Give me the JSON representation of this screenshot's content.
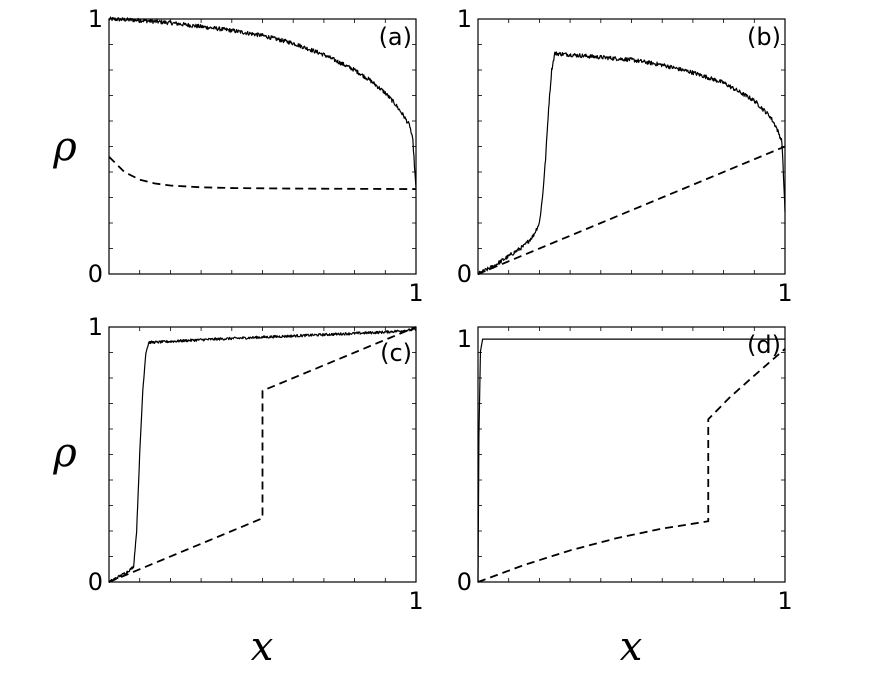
{
  "figure": {
    "ylabel": "ρ",
    "xlabel": "x"
  },
  "chart_data": [
    {
      "type": "line",
      "panel_label": "(a)",
      "xlim": [
        0,
        1
      ],
      "ylim": [
        0,
        1
      ],
      "xticklabels": [
        "",
        "1"
      ],
      "yticklabels": [
        "0",
        "1"
      ],
      "series": [
        {
          "style": "solid",
          "x": [
            0,
            0.1,
            0.2,
            0.3,
            0.4,
            0.5,
            0.6,
            0.7,
            0.75,
            0.8,
            0.85,
            0.9,
            0.93,
            0.96,
            0.98,
            0.99,
            1.0
          ],
          "y": [
            1.0,
            0.995,
            0.985,
            0.97,
            0.955,
            0.935,
            0.905,
            0.86,
            0.83,
            0.8,
            0.76,
            0.71,
            0.67,
            0.62,
            0.58,
            0.52,
            0.33
          ]
        },
        {
          "style": "dashed",
          "x": [
            0,
            0.05,
            0.1,
            0.15,
            0.2,
            0.3,
            0.4,
            0.6,
            0.8,
            1.0
          ],
          "y": [
            0.46,
            0.4,
            0.37,
            0.355,
            0.347,
            0.34,
            0.337,
            0.335,
            0.334,
            0.333
          ]
        }
      ],
      "noise": 0.008
    },
    {
      "type": "line",
      "panel_label": "(b)",
      "xlim": [
        0,
        1
      ],
      "ylim": [
        0,
        1
      ],
      "xticklabels": [
        "",
        "1"
      ],
      "yticklabels": [
        "0",
        "1"
      ],
      "series": [
        {
          "style": "solid",
          "x": [
            0,
            0.05,
            0.1,
            0.15,
            0.18,
            0.2,
            0.21,
            0.22,
            0.23,
            0.24,
            0.25,
            0.3,
            0.4,
            0.5,
            0.6,
            0.7,
            0.8,
            0.9,
            0.95,
            0.97,
            0.99,
            1.0
          ],
          "y": [
            0.0,
            0.03,
            0.07,
            0.11,
            0.15,
            0.2,
            0.3,
            0.45,
            0.65,
            0.8,
            0.865,
            0.86,
            0.85,
            0.84,
            0.82,
            0.79,
            0.75,
            0.68,
            0.62,
            0.58,
            0.52,
            0.25
          ]
        },
        {
          "style": "dashed",
          "x": [
            0,
            1.0
          ],
          "y": [
            0.0,
            0.5
          ]
        }
      ],
      "noise": 0.008
    },
    {
      "type": "line",
      "panel_label": "(c)",
      "xlim": [
        0,
        1
      ],
      "ylim": [
        0,
        1
      ],
      "xticklabels": [
        "",
        "1"
      ],
      "yticklabels": [
        "0",
        "1"
      ],
      "series": [
        {
          "style": "solid",
          "x": [
            0,
            0.03,
            0.06,
            0.08,
            0.09,
            0.1,
            0.11,
            0.12,
            0.13,
            0.15,
            0.3,
            0.5,
            0.7,
            0.9,
            1.0
          ],
          "y": [
            0.0,
            0.02,
            0.04,
            0.06,
            0.2,
            0.5,
            0.75,
            0.9,
            0.94,
            0.94,
            0.95,
            0.96,
            0.97,
            0.98,
            0.99
          ]
        },
        {
          "style": "dashed",
          "x": [
            0,
            0.5,
            0.5,
            1.0
          ],
          "y": [
            0.0,
            0.25,
            0.75,
            1.0
          ]
        }
      ],
      "noise": 0.005
    },
    {
      "type": "line",
      "panel_label": "(d)",
      "xlim": [
        0,
        1
      ],
      "ylim": [
        0,
        1.05
      ],
      "xticklabels": [
        "",
        "1"
      ],
      "yticklabels": [
        "0",
        "1"
      ],
      "series": [
        {
          "style": "solid",
          "x": [
            0,
            0.003,
            0.008,
            0.015,
            1.0
          ],
          "y": [
            0.0,
            0.6,
            0.95,
            1.0,
            1.0
          ]
        },
        {
          "style": "dashed",
          "x": [
            0,
            0.15,
            0.3,
            0.45,
            0.6,
            0.75,
            0.75,
            0.82,
            0.9,
            1.0
          ],
          "y": [
            0.0,
            0.07,
            0.13,
            0.18,
            0.22,
            0.25,
            0.67,
            0.76,
            0.85,
            0.96
          ]
        }
      ],
      "noise": 0.0
    }
  ]
}
